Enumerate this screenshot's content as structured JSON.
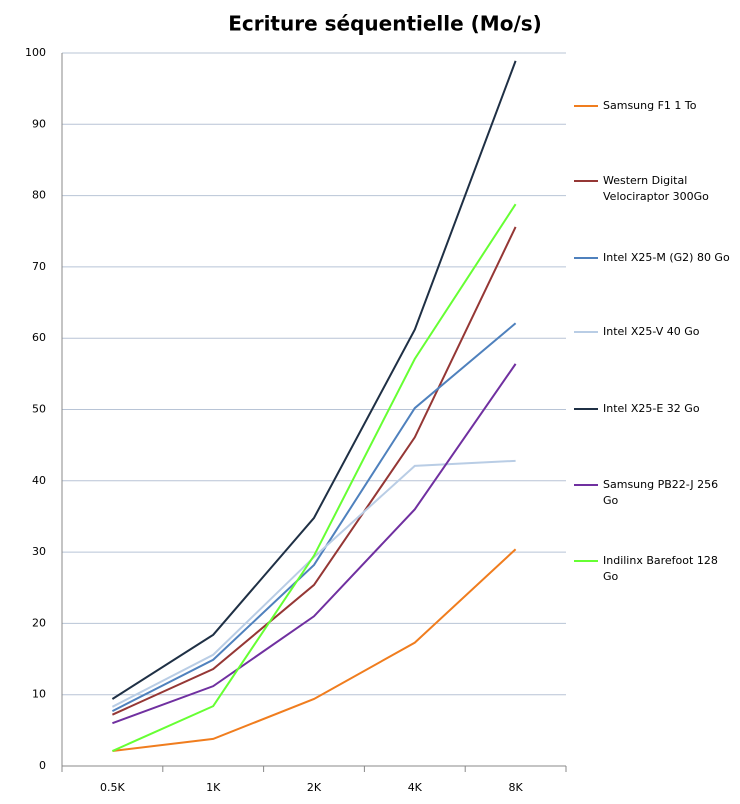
{
  "chart_data": {
    "type": "line",
    "title": "Ecriture séquentielle (Mo/s)",
    "categories": [
      "0.5K",
      "1K",
      "2K",
      "4K",
      "8K"
    ],
    "series": [
      {
        "name": "Samsung F1 1 To",
        "color": "#f07d1e",
        "values": [
          2.1,
          3.8,
          9.4,
          17.3,
          30.4
        ]
      },
      {
        "name": "Western Digital Velociraptor 300Go",
        "color": "#953735",
        "values": [
          7.2,
          13.6,
          25.4,
          46.1,
          75.6
        ]
      },
      {
        "name": "Intel X25-M (G2) 80 Go",
        "color": "#4f81bd",
        "values": [
          7.7,
          14.9,
          28.2,
          50.2,
          62.1
        ]
      },
      {
        "name": "Intel X25-V 40 Go",
        "color": "#b9cde5",
        "values": [
          8.3,
          15.6,
          29.3,
          42.1,
          42.8
        ]
      },
      {
        "name": "Intel X25-E 32 Go",
        "color": "#1f3045",
        "values": [
          9.4,
          18.4,
          34.8,
          61.2,
          98.9
        ]
      },
      {
        "name": "Samsung PB22-J 256 Go",
        "color": "#7030a0",
        "values": [
          6.0,
          11.2,
          21.0,
          36.0,
          56.4
        ]
      },
      {
        "name": "Indilinx Barefoot 128 Go",
        "color": "#66ff33",
        "values": [
          2.1,
          8.4,
          29.5,
          57.1,
          78.8
        ]
      }
    ],
    "ylim": [
      0,
      100
    ],
    "yticks": [
      0,
      10,
      20,
      30,
      40,
      50,
      60,
      70,
      80,
      90,
      100
    ],
    "grid": true
  }
}
